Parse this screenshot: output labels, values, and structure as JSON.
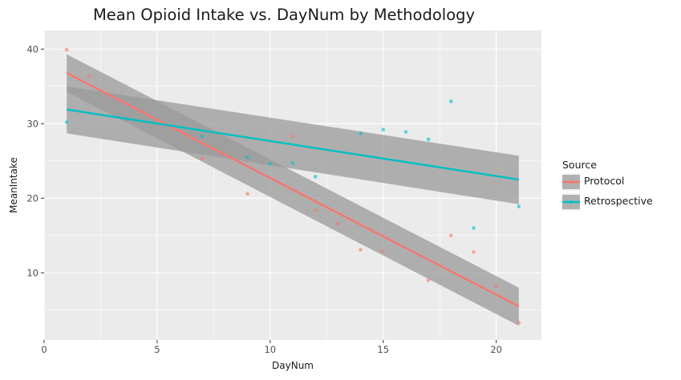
{
  "chart_data": {
    "type": "scatter",
    "title": "Mean Opioid Intake vs. DayNum by Methodology",
    "xlabel": "DayNum",
    "ylabel": "MeanIntake",
    "xlim": [
      0,
      22
    ],
    "ylim": [
      1.0,
      42.5
    ],
    "x_ticks": [
      0,
      5,
      10,
      15,
      20
    ],
    "y_ticks": [
      10,
      20,
      30,
      40
    ],
    "grid": true,
    "legend": {
      "title": "Source",
      "position": "right"
    },
    "series": [
      {
        "name": "Protocol",
        "color": "#F8766D",
        "points": [
          {
            "x": 1,
            "y": 39.9
          },
          {
            "x": 2,
            "y": 36.3
          },
          {
            "x": 7,
            "y": 25.3
          },
          {
            "x": 9,
            "y": 20.6
          },
          {
            "x": 11,
            "y": 28.3
          },
          {
            "x": 12,
            "y": 18.4
          },
          {
            "x": 13,
            "y": 16.6
          },
          {
            "x": 14,
            "y": 13.1
          },
          {
            "x": 15,
            "y": 12.9
          },
          {
            "x": 17,
            "y": 9.0
          },
          {
            "x": 18,
            "y": 15.0
          },
          {
            "x": 19,
            "y": 12.8
          },
          {
            "x": 20,
            "y": 8.2
          },
          {
            "x": 21,
            "y": 3.3
          }
        ],
        "fit": {
          "x": [
            1,
            21
          ],
          "y": [
            36.8,
            5.5
          ]
        },
        "ci_lower": {
          "x": [
            1,
            21
          ],
          "y": [
            34.3,
            2.9
          ]
        },
        "ci_upper": {
          "x": [
            1,
            21
          ],
          "y": [
            39.3,
            8.0
          ]
        }
      },
      {
        "name": "Retrospective",
        "color": "#00BFC4",
        "points": [
          {
            "x": 1,
            "y": 30.2
          },
          {
            "x": 7,
            "y": 28.3
          },
          {
            "x": 9,
            "y": 25.5
          },
          {
            "x": 10,
            "y": 24.6
          },
          {
            "x": 11,
            "y": 24.7
          },
          {
            "x": 12,
            "y": 22.9
          },
          {
            "x": 14,
            "y": 28.7
          },
          {
            "x": 15,
            "y": 29.2
          },
          {
            "x": 16,
            "y": 28.9
          },
          {
            "x": 17,
            "y": 27.9
          },
          {
            "x": 18,
            "y": 33.0
          },
          {
            "x": 19,
            "y": 16.0
          },
          {
            "x": 21,
            "y": 18.9
          }
        ],
        "fit": {
          "x": [
            1,
            21
          ],
          "y": [
            31.9,
            22.5
          ]
        },
        "ci_lower": {
          "x": [
            1,
            21
          ],
          "y": [
            28.7,
            19.2
          ]
        },
        "ci_upper": {
          "x": [
            1,
            21
          ],
          "y": [
            35.0,
            25.7
          ]
        }
      }
    ]
  }
}
